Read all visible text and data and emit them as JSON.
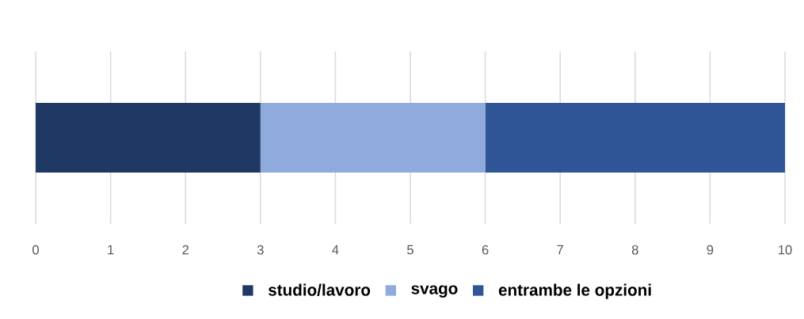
{
  "chart_data": {
    "type": "bar",
    "orientation": "horizontal",
    "stacked": true,
    "categories": [
      null
    ],
    "series": [
      {
        "name": "studio/lavoro",
        "color": "#203864",
        "values": [
          3
        ]
      },
      {
        "name": "svago",
        "color": "#8faadc",
        "values": [
          3
        ]
      },
      {
        "name": "entrambe le opzioni",
        "color": "#2f5597",
        "values": [
          4
        ]
      }
    ],
    "xlim": [
      0,
      10
    ],
    "xticks": [
      0,
      1,
      2,
      3,
      4,
      5,
      6,
      7,
      8,
      9,
      10
    ],
    "grid": "x",
    "legend": "bottom"
  }
}
